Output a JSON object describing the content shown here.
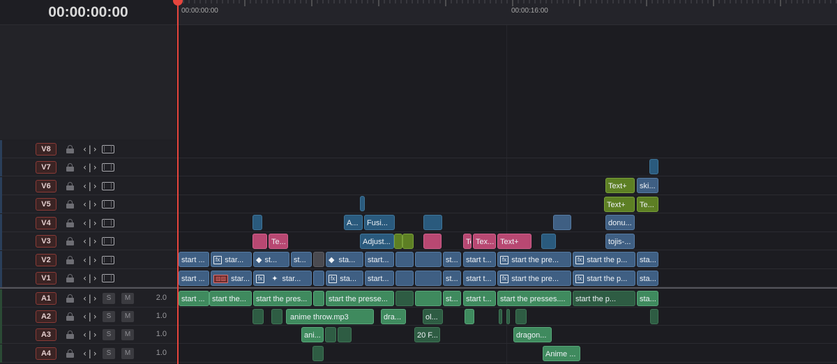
{
  "timecode": "00:00:00:00",
  "ruler": {
    "labels": [
      {
        "text": "00:00:00:00"
      },
      {
        "text": "00:00:16:00"
      }
    ]
  },
  "video_tracks": [
    {
      "id": "V8"
    },
    {
      "id": "V7"
    },
    {
      "id": "V6"
    },
    {
      "id": "V5"
    },
    {
      "id": "V4"
    },
    {
      "id": "V3"
    },
    {
      "id": "V2"
    },
    {
      "id": "V1"
    }
  ],
  "audio_tracks": [
    {
      "id": "A1",
      "solo": "S",
      "mute": "M",
      "level": "2.0"
    },
    {
      "id": "A2",
      "solo": "S",
      "mute": "M",
      "level": "1.0"
    },
    {
      "id": "A3",
      "solo": "S",
      "mute": "M",
      "level": "1.0"
    },
    {
      "id": "A4",
      "solo": "S",
      "mute": "M",
      "level": "1.0"
    }
  ],
  "clips": {
    "V7": [
      {
        "label": ""
      }
    ],
    "V6": [
      {
        "label": "Text+"
      },
      {
        "label": "ski..."
      }
    ],
    "V5": [
      {
        "label": ""
      },
      {
        "label": "Text+"
      },
      {
        "label": "Te..."
      }
    ],
    "V4": [
      {
        "label": ""
      },
      {
        "label": "A..."
      },
      {
        "label": "Fusi..."
      },
      {
        "label": ""
      },
      {
        "label": ""
      },
      {
        "label": "donu..."
      }
    ],
    "V3": [
      {
        "label": ""
      },
      {
        "label": "Te..."
      },
      {
        "label": "Adjust..."
      },
      {
        "label": ""
      },
      {
        "label": ""
      },
      {
        "label": ""
      },
      {
        "label": "Tex..."
      },
      {
        "label": "Text+"
      },
      {
        "label": ""
      },
      {
        "label": "tojis-..."
      }
    ],
    "V2": [
      {
        "label": "start ..."
      },
      {
        "label": "star..."
      },
      {
        "label": "st..."
      },
      {
        "label": "st..."
      },
      {
        "label": ""
      },
      {
        "label": "sta..."
      },
      {
        "label": "start..."
      },
      {
        "label": ""
      },
      {
        "label": ""
      },
      {
        "label": "st..."
      },
      {
        "label": "start t..."
      },
      {
        "label": "start the pre..."
      },
      {
        "label": "start the p..."
      },
      {
        "label": "sta..."
      }
    ],
    "V1": [
      {
        "label": "start ..."
      },
      {
        "label": "star..."
      },
      {
        "label": "star..."
      },
      {
        "label": "st..."
      },
      {
        "label": ""
      },
      {
        "label": "sta..."
      },
      {
        "label": "start..."
      },
      {
        "label": ""
      },
      {
        "label": ""
      },
      {
        "label": "st..."
      },
      {
        "label": "start t..."
      },
      {
        "label": "start the pre..."
      },
      {
        "label": "start the p..."
      },
      {
        "label": "sta..."
      }
    ],
    "A1": [
      {
        "label": "start ..."
      },
      {
        "label": "start the..."
      },
      {
        "label": "start the pres..."
      },
      {
        "label": ""
      },
      {
        "label": "start the presse..."
      },
      {
        "label": ""
      },
      {
        "label": ""
      },
      {
        "label": "st..."
      },
      {
        "label": "start t..."
      },
      {
        "label": "start the presses...."
      },
      {
        "label": "start the p..."
      },
      {
        "label": "sta..."
      }
    ],
    "A2": [
      {
        "label": ""
      },
      {
        "label": ""
      },
      {
        "label": "anime throw.mp3"
      },
      {
        "label": "dra..."
      },
      {
        "label": "ol..."
      },
      {
        "label": ""
      },
      {
        "label": ""
      },
      {
        "label": ""
      },
      {
        "label": ""
      }
    ],
    "A3": [
      {
        "label": "ani..."
      },
      {
        "label": ""
      },
      {
        "label": ""
      },
      {
        "label": "20 F..."
      },
      {
        "label": "dragon..."
      }
    ],
    "A4": [
      {
        "label": ""
      },
      {
        "label": "Anime ..."
      }
    ]
  }
}
